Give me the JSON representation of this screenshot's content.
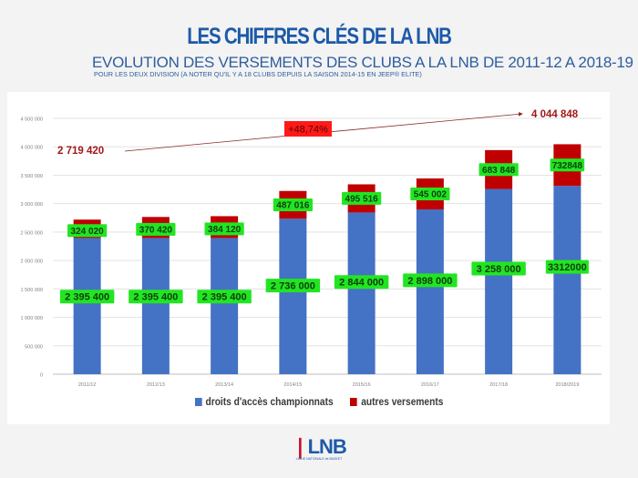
{
  "header": {
    "title": "LES CHIFFRES CLÉS DE LA LNB",
    "subtitle": "EVOLUTION DES VERSEMENTS DES CLUBS A LA LNB DE 2011-12 A 2018-19",
    "note": "POUR LES DEUX DIVISION (A NOTER QU'IL Y A 18 CLUBS DEPUIS LA SAISON 2014-15 EN JEEP® ELITE)"
  },
  "colors": {
    "series_droits": "#4472c4",
    "series_autres": "#c00000",
    "label_bg": "#22e522",
    "annotation_text": "#a01818",
    "pct_bg": "#ff1a1a",
    "title": "#1c5aa8"
  },
  "chart_data": {
    "type": "bar",
    "stacked": true,
    "title": "EVOLUTION DES VERSEMENTS DES CLUBS A LA LNB DE 2011-12 A 2018-19",
    "xlabel": "",
    "ylabel": "",
    "ylim": [
      0,
      4500000
    ],
    "yticks": [
      0,
      500000,
      1000000,
      1500000,
      2000000,
      2500000,
      3000000,
      3500000,
      4000000,
      4500000
    ],
    "ytick_labels": [
      "0",
      "500 000",
      "1 000 000",
      "1 500 000",
      "2 000 000",
      "2 500 000",
      "3 000 000",
      "3 500 000",
      "4 000 000",
      "4 500 000"
    ],
    "grid": true,
    "legend_position": "bottom",
    "categories": [
      "2011/12",
      "2012/13",
      "2013/14",
      "2014/15",
      "2015/16",
      "2016/17",
      "2017/18",
      "2018/2019"
    ],
    "series": [
      {
        "name": "droits d'accès championnats",
        "values": [
          2395400,
          2395400,
          2395400,
          2736000,
          2844000,
          2898000,
          3258000,
          3312000
        ],
        "labels": [
          "2 395 400",
          "2 395 400",
          "2 395 400",
          "2 736 000",
          "2 844 000",
          "2 898 000",
          "3 258 000",
          "3312000"
        ]
      },
      {
        "name": "autres versements",
        "values": [
          324020,
          370420,
          384120,
          487016,
          495516,
          545002,
          683848,
          732848
        ],
        "labels": [
          "324 020",
          "370 420",
          "384 120",
          "487 016",
          "495 516",
          "545 002",
          "683 848",
          "732848"
        ]
      }
    ],
    "annotations": {
      "start_total": 2719420,
      "start_label": "2 719 420",
      "end_total": 4044848,
      "end_label": "4 044 848",
      "growth_label": "+48,74%"
    }
  },
  "footer": {
    "logo_text": "LNB",
    "logo_subtext": "LIGUE NATIONALE de BASKET"
  }
}
